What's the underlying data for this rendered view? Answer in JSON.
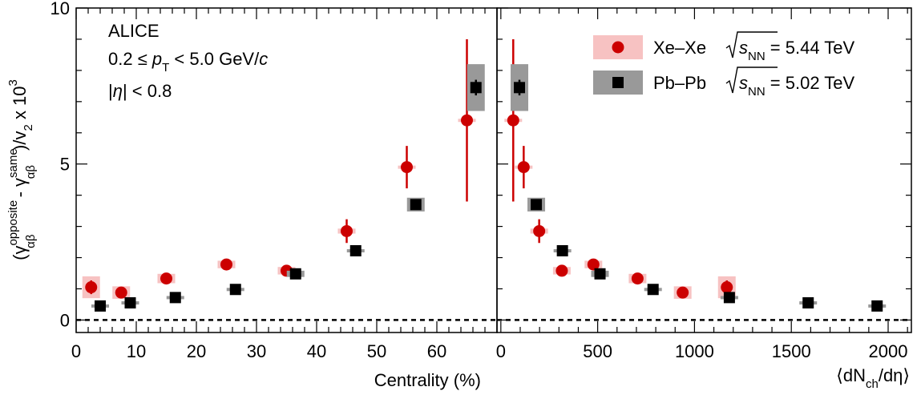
{
  "chart_data": [
    {
      "type": "scatter",
      "panel": "left",
      "xlabel": "Centrality (%)",
      "ylabel_parts": {
        "open": "(γ",
        "sub": "αβ",
        "sup1": "opposite",
        "minus": " - γ",
        "sup2": "same",
        "close": ")/v",
        "v2sub": "2",
        "times": " x 10",
        "exp": "3"
      },
      "xlim": [
        0,
        70
      ],
      "ylim": [
        -0.4,
        10
      ],
      "x_ticks": [
        0,
        10,
        20,
        30,
        40,
        50,
        60
      ],
      "y_ticks": [
        0,
        5,
        10
      ],
      "reference_line_y": 0,
      "series": [
        {
          "name": "Xe–Xe",
          "marker": "circle",
          "color": "#cc0000",
          "syst_color": "#f7c2c2",
          "points": [
            {
              "x": 2.5,
              "y": 1.05,
              "stat": 0.22,
              "syst": 0.35
            },
            {
              "x": 7.5,
              "y": 0.88,
              "stat": 0.15,
              "syst": 0.2
            },
            {
              "x": 15,
              "y": 1.33,
              "stat": 0.1,
              "syst": 0.15
            },
            {
              "x": 25,
              "y": 1.78,
              "stat": 0.1,
              "syst": 0.12
            },
            {
              "x": 35,
              "y": 1.58,
              "stat": 0.18,
              "syst": 0.12
            },
            {
              "x": 45,
              "y": 2.85,
              "stat": 0.38,
              "syst": 0.08
            },
            {
              "x": 55,
              "y": 4.9,
              "stat": 0.68,
              "syst": 0.05
            },
            {
              "x": 65,
              "y": 6.4,
              "stat": 2.6,
              "syst": 0.05
            }
          ]
        },
        {
          "name": "Pb–Pb",
          "marker": "square",
          "color": "#000000",
          "syst_color": "#999999",
          "points": [
            {
              "x": 4,
              "y": 0.45,
              "stat": 0.05,
              "syst": 0.05
            },
            {
              "x": 9,
              "y": 0.55,
              "stat": 0.05,
              "syst": 0.05
            },
            {
              "x": 16.5,
              "y": 0.72,
              "stat": 0.05,
              "syst": 0.05
            },
            {
              "x": 26.5,
              "y": 0.98,
              "stat": 0.05,
              "syst": 0.05
            },
            {
              "x": 36.5,
              "y": 1.48,
              "stat": 0.05,
              "syst": 0.1
            },
            {
              "x": 46.5,
              "y": 2.22,
              "stat": 0.05,
              "syst": 0.05
            },
            {
              "x": 56.5,
              "y": 3.7,
              "stat": 0.1,
              "syst": 0.22
            },
            {
              "x": 66.5,
              "y": 7.45,
              "stat": 0.25,
              "syst": 0.75
            }
          ]
        }
      ]
    },
    {
      "type": "scatter",
      "panel": "right",
      "xlabel_parts": {
        "open": "⟨dN",
        "sub": "ch",
        "close": "/dη⟩"
      },
      "xlim": [
        -20,
        2120
      ],
      "ylim": [
        -0.4,
        10
      ],
      "x_ticks": [
        0,
        500,
        1000,
        1500,
        2000
      ],
      "y_ticks": [
        0,
        5,
        10
      ],
      "reference_line_y": 0,
      "series": [
        {
          "name": "Xe–Xe",
          "marker": "circle",
          "color": "#cc0000",
          "syst_color": "#f7c2c2",
          "points": [
            {
              "x": 1167,
              "y": 1.05,
              "stat": 0.22,
              "syst": 0.35
            },
            {
              "x": 939,
              "y": 0.88,
              "stat": 0.15,
              "syst": 0.2
            },
            {
              "x": 706,
              "y": 1.33,
              "stat": 0.1,
              "syst": 0.15
            },
            {
              "x": 478,
              "y": 1.78,
              "stat": 0.1,
              "syst": 0.12
            },
            {
              "x": 315,
              "y": 1.58,
              "stat": 0.18,
              "syst": 0.12
            },
            {
              "x": 198,
              "y": 2.85,
              "stat": 0.38,
              "syst": 0.08
            },
            {
              "x": 118,
              "y": 4.9,
              "stat": 0.68,
              "syst": 0.05
            },
            {
              "x": 64,
              "y": 6.4,
              "stat": 2.6,
              "syst": 0.05
            }
          ]
        },
        {
          "name": "Pb–Pb",
          "marker": "square",
          "color": "#000000",
          "syst_color": "#999999",
          "points": [
            {
              "x": 1943,
              "y": 0.45,
              "stat": 0.05,
              "syst": 0.05
            },
            {
              "x": 1587,
              "y": 0.55,
              "stat": 0.05,
              "syst": 0.05
            },
            {
              "x": 1180,
              "y": 0.72,
              "stat": 0.05,
              "syst": 0.05
            },
            {
              "x": 786,
              "y": 0.98,
              "stat": 0.05,
              "syst": 0.05
            },
            {
              "x": 512,
              "y": 1.48,
              "stat": 0.05,
              "syst": 0.1
            },
            {
              "x": 318,
              "y": 2.22,
              "stat": 0.05,
              "syst": 0.05
            },
            {
              "x": 183,
              "y": 3.7,
              "stat": 0.1,
              "syst": 0.22
            },
            {
              "x": 96,
              "y": 7.45,
              "stat": 0.25,
              "syst": 0.75
            }
          ]
        }
      ]
    }
  ],
  "info": {
    "experiment": "ALICE",
    "pt_range_prefix": "0.2 ≤ ",
    "pt_symbol": "p",
    "pt_sub": "T",
    "pt_range_suffix": " < 5.0 GeV/",
    "pt_unit_c": "c",
    "eta_cut_open": "|",
    "eta_symbol": "η",
    "eta_cut_close": "| < 0.8"
  },
  "legend": [
    {
      "label": "Xe–Xe",
      "energy_symbol": "s",
      "energy_sub": "NN",
      "energy_value": " = 5.44 TeV"
    },
    {
      "label": "Pb–Pb",
      "energy_symbol": "s",
      "energy_sub": "NN",
      "energy_value": " = 5.02 TeV"
    }
  ]
}
